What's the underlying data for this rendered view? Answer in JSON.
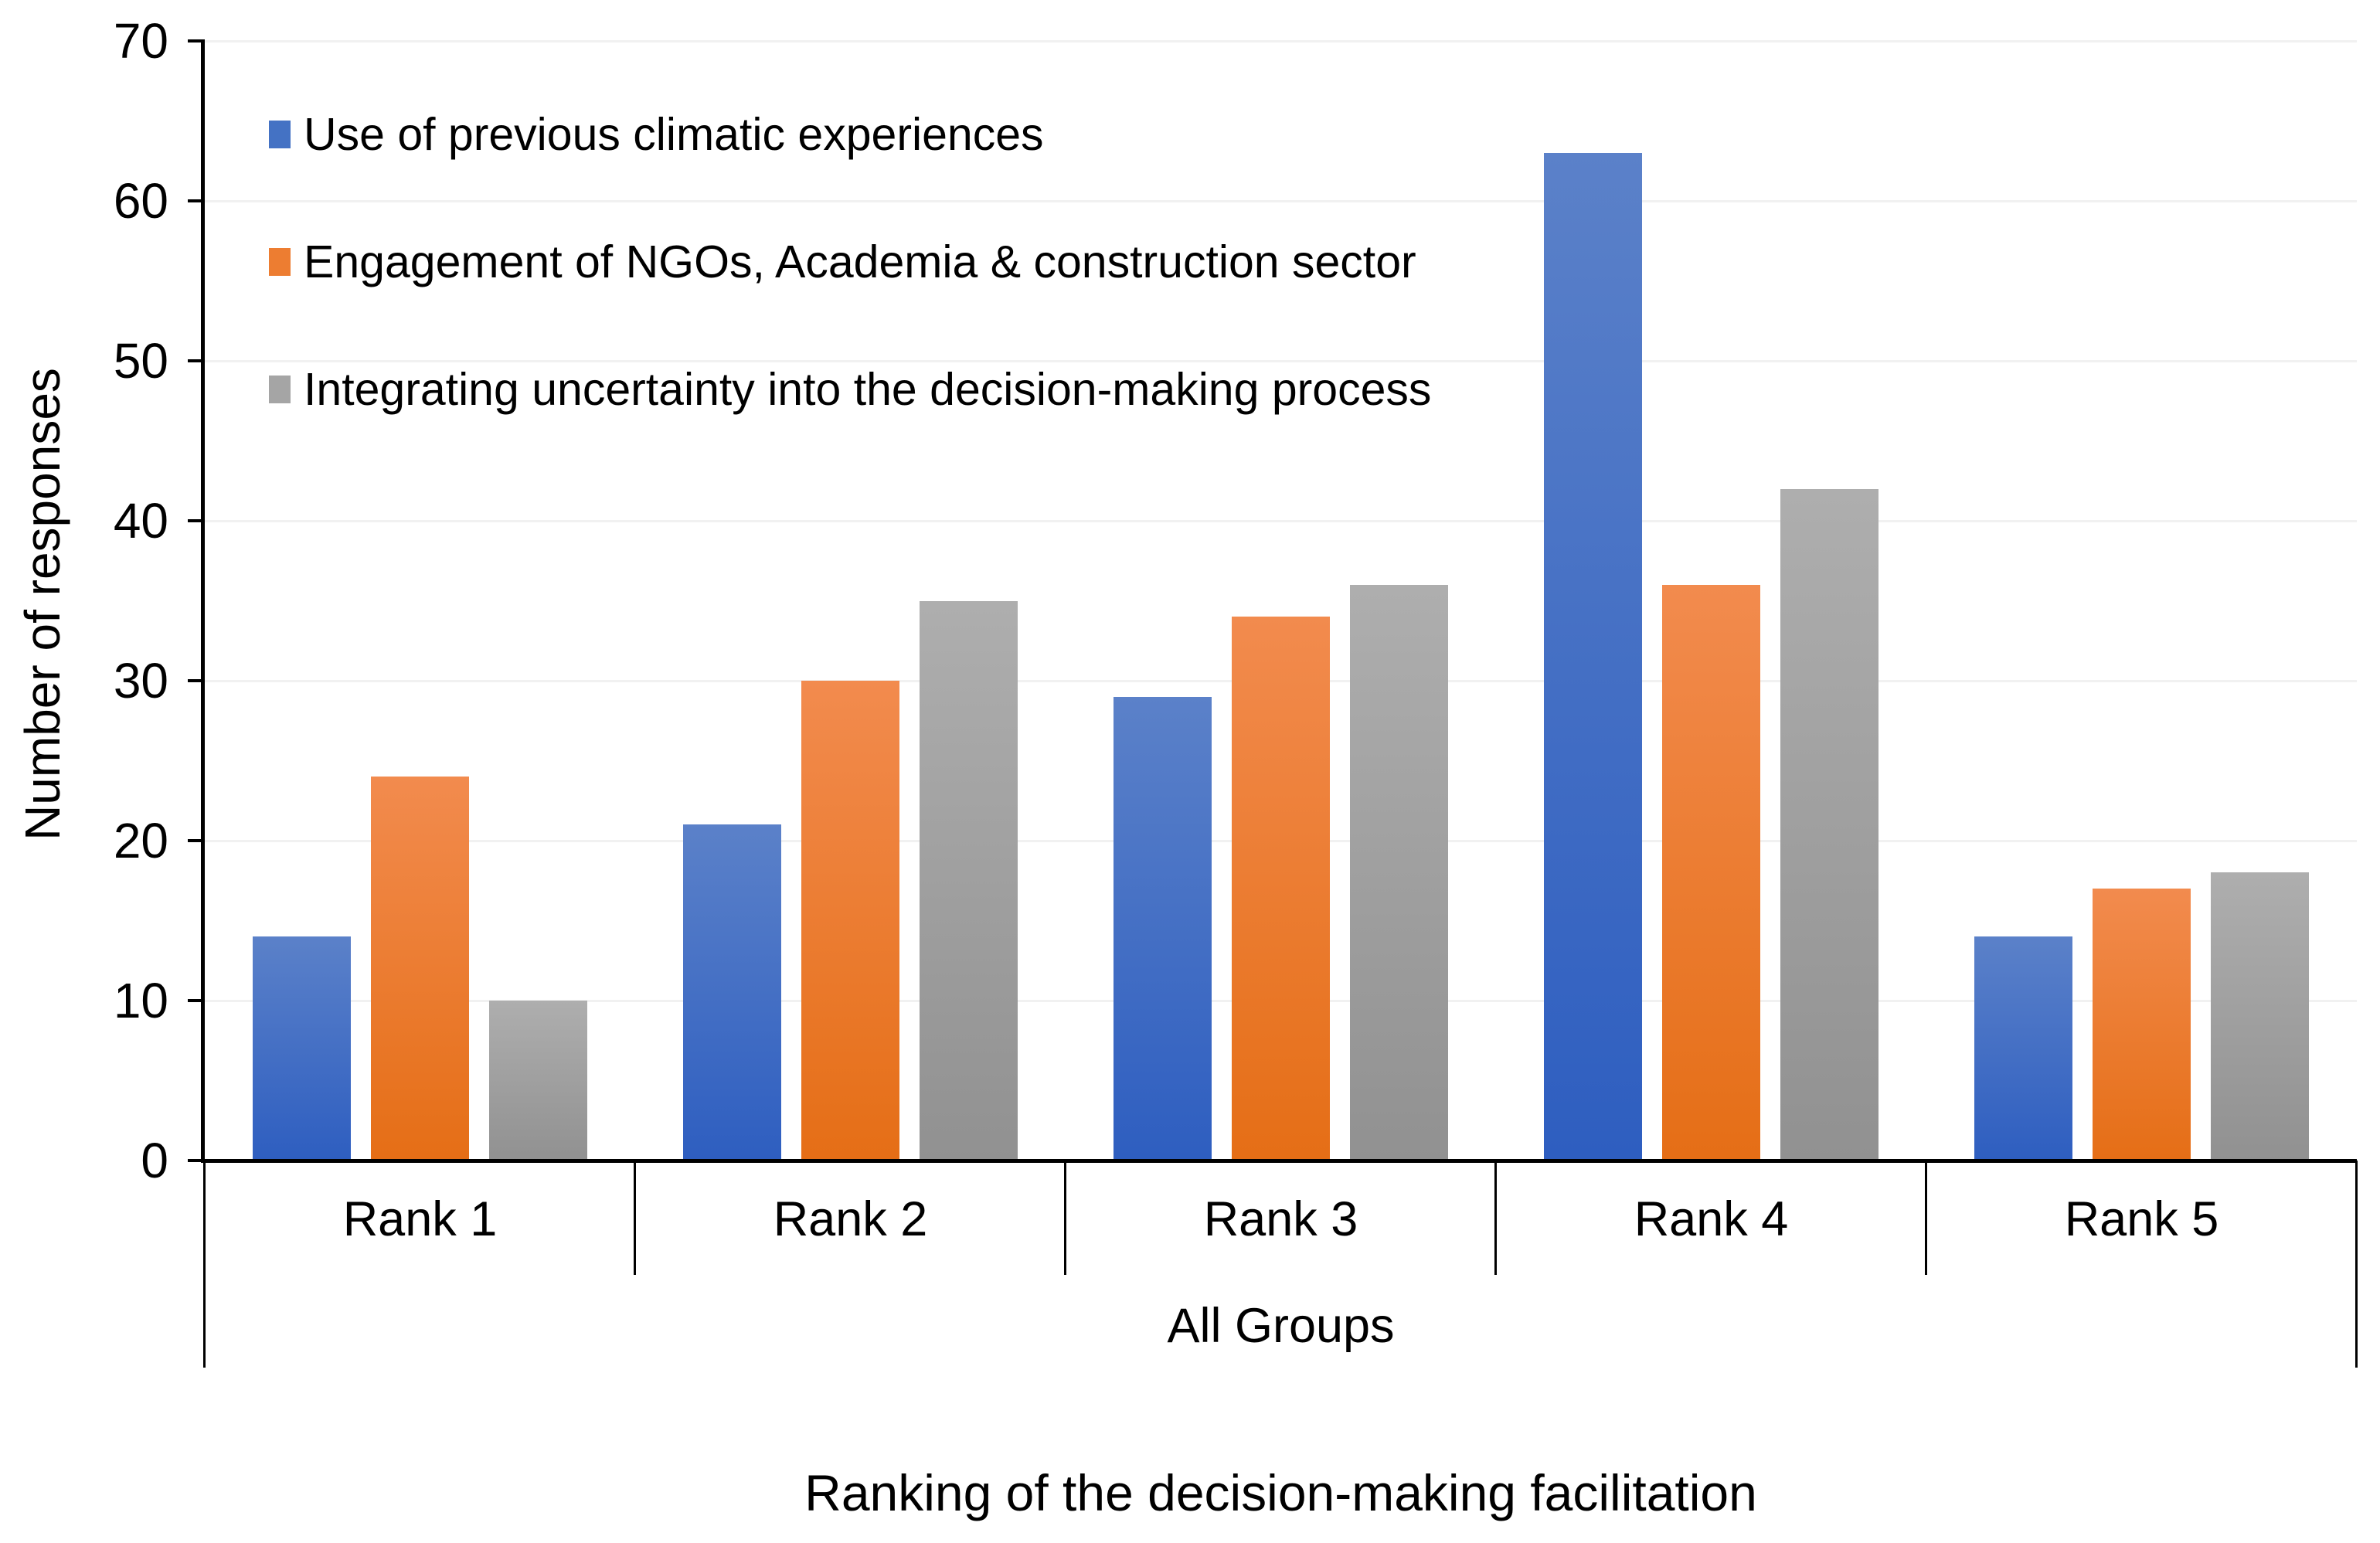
{
  "chart_data": {
    "type": "bar",
    "title": "",
    "xlabel": "Ranking of the decision-making facilitation",
    "ylabel": "Number of responses",
    "categories": [
      "Rank 1",
      "Rank 2",
      "Rank 3",
      "Rank 4",
      "Rank 5"
    ],
    "group_axis_label": "All Groups",
    "ylim": [
      0,
      70
    ],
    "yticks": [
      0,
      10,
      20,
      30,
      40,
      50,
      60,
      70
    ],
    "grid": true,
    "legend_position": "inside-top-left",
    "series": [
      {
        "name": "Use of previous climatic experiences",
        "values": [
          14,
          21,
          29,
          63,
          14
        ],
        "legend_color": "#4472C4",
        "color_top": "#5B81C9",
        "color_bottom": "#2E5EC0"
      },
      {
        "name": "Engagement of NGOs, Academia & construction sector",
        "values": [
          24,
          30,
          34,
          36,
          17
        ],
        "legend_color": "#ED7D31",
        "color_top": "#F28B4E",
        "color_bottom": "#E56E16"
      },
      {
        "name": "Integrating uncertainty into the decision-making process",
        "values": [
          10,
          35,
          36,
          42,
          18
        ],
        "legend_color": "#A5A5A5",
        "color_top": "#AEAEAE",
        "color_bottom": "#919191"
      }
    ]
  }
}
